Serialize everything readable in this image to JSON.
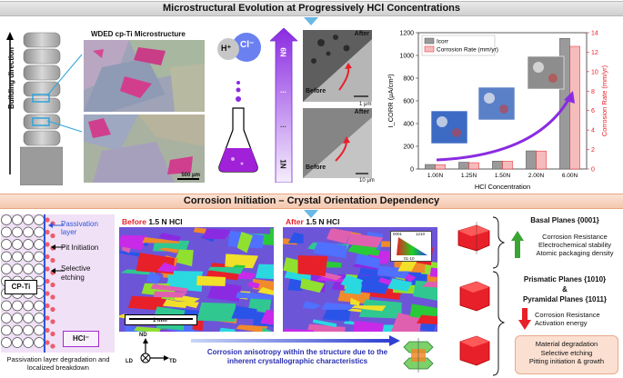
{
  "titles": {
    "top": "Microstructural Evolution at Progressively HCl Concentrations",
    "bottom": "Corrosion Initiation – Crystal Orientation Dependency"
  },
  "build": {
    "direction_label": "Building direction"
  },
  "micro": {
    "title": "WDED cp-Ti Microstructure",
    "scale": "500 μm"
  },
  "ions": {
    "h": "H⁺",
    "cl": "Cl⁻"
  },
  "conc_arrow": {
    "top": "6N",
    "bottom": "1N",
    "dots": "..."
  },
  "sem": {
    "after": "After",
    "before": "Before",
    "scale1": "1 μm",
    "scale2": "10 μm"
  },
  "chart_data": {
    "type": "bar",
    "categories": [
      "1.00N",
      "1.25N",
      "1.50N",
      "2.00N",
      "6.00N"
    ],
    "series": [
      {
        "name": "Icorr",
        "axis": "left",
        "values": [
          40,
          60,
          70,
          160,
          1150
        ],
        "color": "#9a9a9a"
      },
      {
        "name": "Corrosion Rate (mm/yr)",
        "axis": "right",
        "values": [
          0.45,
          0.65,
          0.8,
          1.85,
          12.6
        ],
        "color": "#f5bcbc"
      }
    ],
    "xlabel": "HCl Concentration",
    "ylabel_left": "I_CORR (μA/cm²)",
    "ylabel_right": "Corrosion Rate (mm/yr)",
    "ylim_left": [
      0,
      1200
    ],
    "ylim_right": [
      0,
      14
    ],
    "yticks_left": [
      "0",
      "200",
      "400",
      "600",
      "800",
      "1000",
      "1200"
    ],
    "yticks_right": [
      "0",
      "2",
      "4",
      "6",
      "8",
      "10",
      "12",
      "14"
    ],
    "legend_position": "top-left"
  },
  "left_diagram": {
    "passivation": "Passivation layer",
    "pit": "Pit Initiation",
    "selective": "Selective etching",
    "cpti": "CP-Ti",
    "hcl": "HCl⁻",
    "caption": "Passivation layer degradation and localized breakdown"
  },
  "ebsd": {
    "before": "Before",
    "after": "After",
    "conc": "1.5 N HCl",
    "scale": "1 mm",
    "ipf": {
      "top": "0001",
      "right": "1210",
      "left": "01-10"
    }
  },
  "axes_labels": {
    "nd": "ND",
    "ld": "LD",
    "td": "TD"
  },
  "anisotropy": "Corrosion anisotropy within the structure due to the inherent crystallographic characteristics",
  "planes": {
    "basal_title": "Basal Planes {0001}",
    "basal_props": [
      "Corrosion Resistance",
      "Electrochemical stability",
      "Atomic packaging density"
    ],
    "prismatic": "Prismatic Planes {1010}",
    "amp": "&",
    "pyramidal": "Pyramidal Planes {1011}",
    "prism_props": [
      "Corrosion Resistance",
      "Activation energy"
    ]
  },
  "summary": [
    "Material degradation",
    "Selective etching",
    "Pitting initiation & growth"
  ],
  "colors": {
    "arrow_blue": "#69b8e6",
    "red": "#e8202a",
    "green": "#3aa435",
    "purple": "#8a2be2"
  }
}
